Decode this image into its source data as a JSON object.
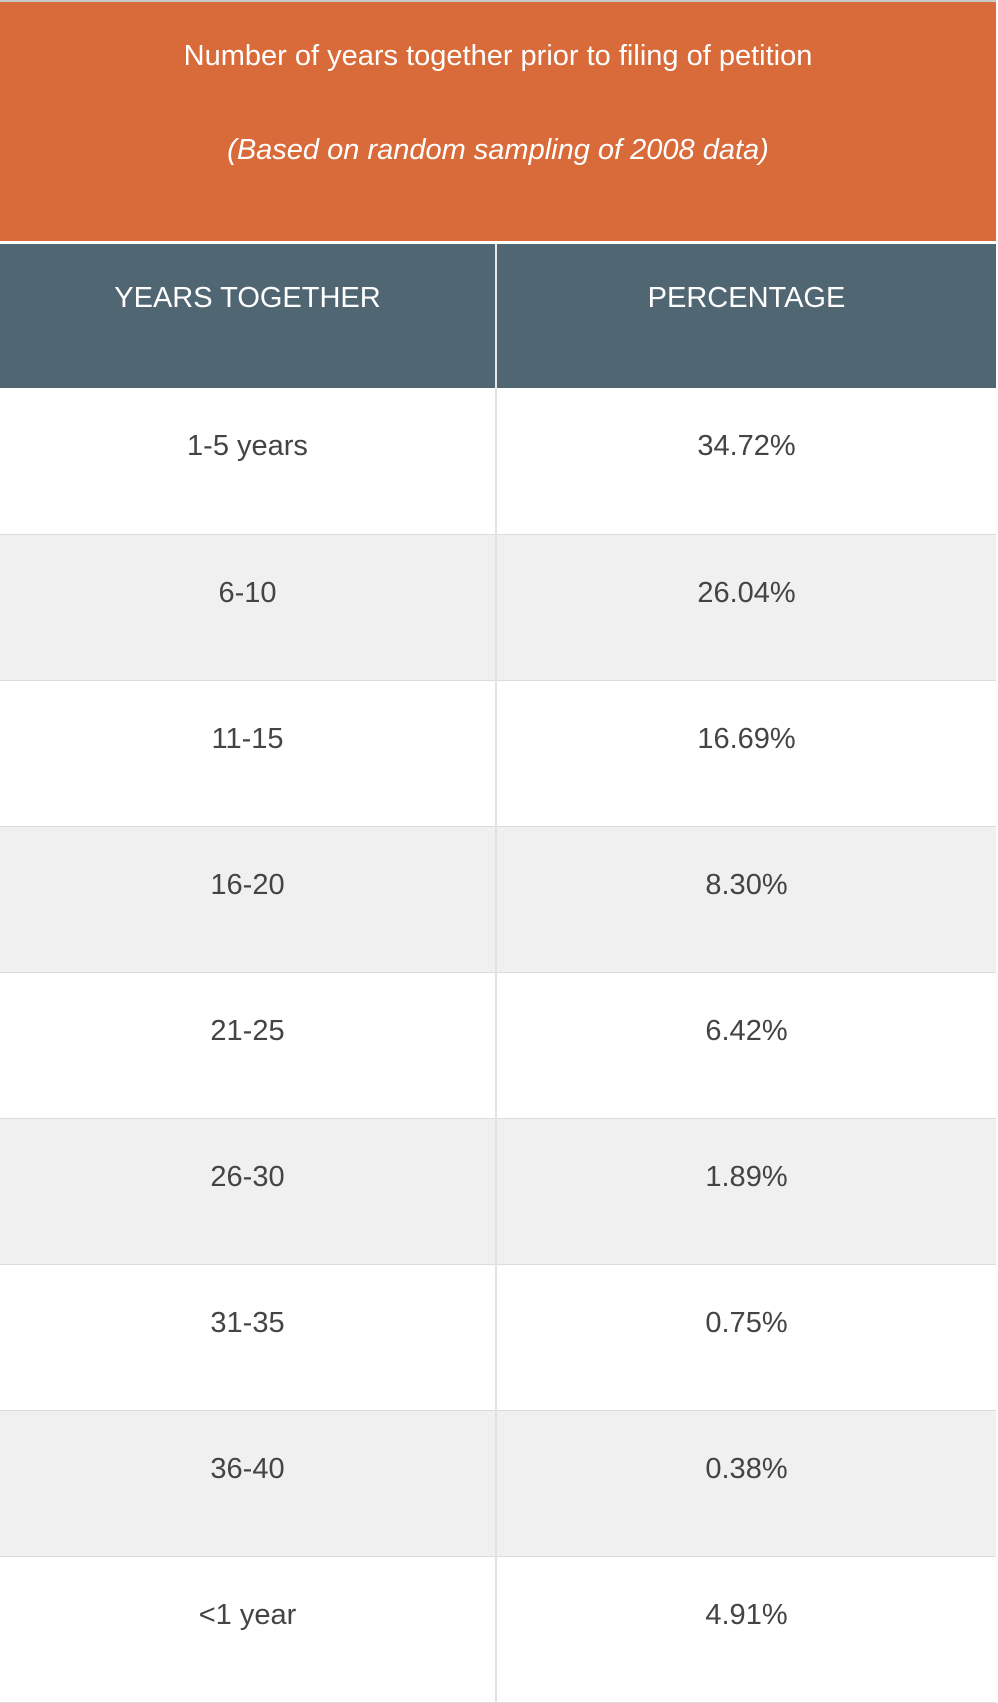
{
  "header": {
    "title": "Number of years together prior to filing of petition",
    "subtitle": "(Based on random sampling of 2008 data)"
  },
  "table": {
    "columns": [
      "YEARS TOGETHER",
      "PERCENTAGE"
    ],
    "rows": [
      [
        "1-5 years",
        "34.72%"
      ],
      [
        "6-10",
        "26.04%"
      ],
      [
        "11-15",
        "16.69%"
      ],
      [
        "16-20",
        "8.30%"
      ],
      [
        "21-25",
        "6.42%"
      ],
      [
        "26-30",
        "1.89%"
      ],
      [
        "31-35",
        "0.75%"
      ],
      [
        "36-40",
        "0.38%"
      ],
      [
        "<1 year",
        "4.91%"
      ]
    ]
  }
}
